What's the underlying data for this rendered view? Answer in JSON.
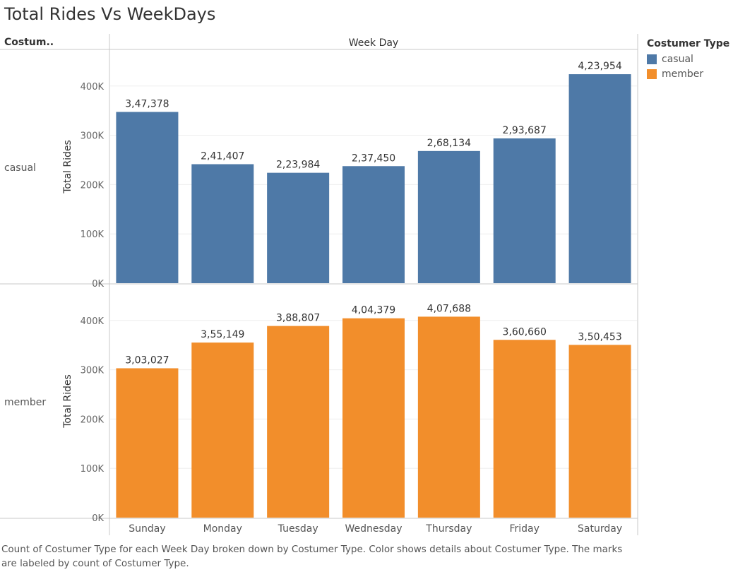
{
  "title": "Total Rides Vs WeekDays",
  "row_header": "Costum..",
  "column_header": "Week Day",
  "legend": {
    "title": "Costumer Type",
    "items": [
      {
        "label": "casual",
        "color": "#4e79a7"
      },
      {
        "label": "member",
        "color": "#f28e2b"
      }
    ]
  },
  "caption": "Count of Costumer Type for each Week Day broken down by Costumer Type.  Color shows details about Costumer Type.  The marks are labeled by count of Costumer Type.",
  "chart_data": {
    "type": "bar",
    "categories": [
      "Sunday",
      "Monday",
      "Tuesday",
      "Wednesday",
      "Thursday",
      "Friday",
      "Saturday"
    ],
    "ylabel": "Total Rides",
    "ylim": [
      0,
      440000
    ],
    "yticks": [
      0,
      100000,
      200000,
      300000,
      400000
    ],
    "ytick_labels": [
      "0K",
      "100K",
      "200K",
      "300K",
      "400K"
    ],
    "series": [
      {
        "name": "casual",
        "color": "#4e79a7",
        "values": [
          347378,
          241407,
          223984,
          237450,
          268134,
          293687,
          423954
        ],
        "labels": [
          "3,47,378",
          "2,41,407",
          "2,23,984",
          "2,37,450",
          "2,68,134",
          "2,93,687",
          "4,23,954"
        ]
      },
      {
        "name": "member",
        "color": "#f28e2b",
        "values": [
          303027,
          355149,
          388807,
          404379,
          407688,
          360660,
          350453
        ],
        "labels": [
          "3,03,027",
          "3,55,149",
          "3,88,807",
          "4,04,379",
          "4,07,688",
          "3,60,660",
          "3,50,453"
        ]
      }
    ]
  }
}
